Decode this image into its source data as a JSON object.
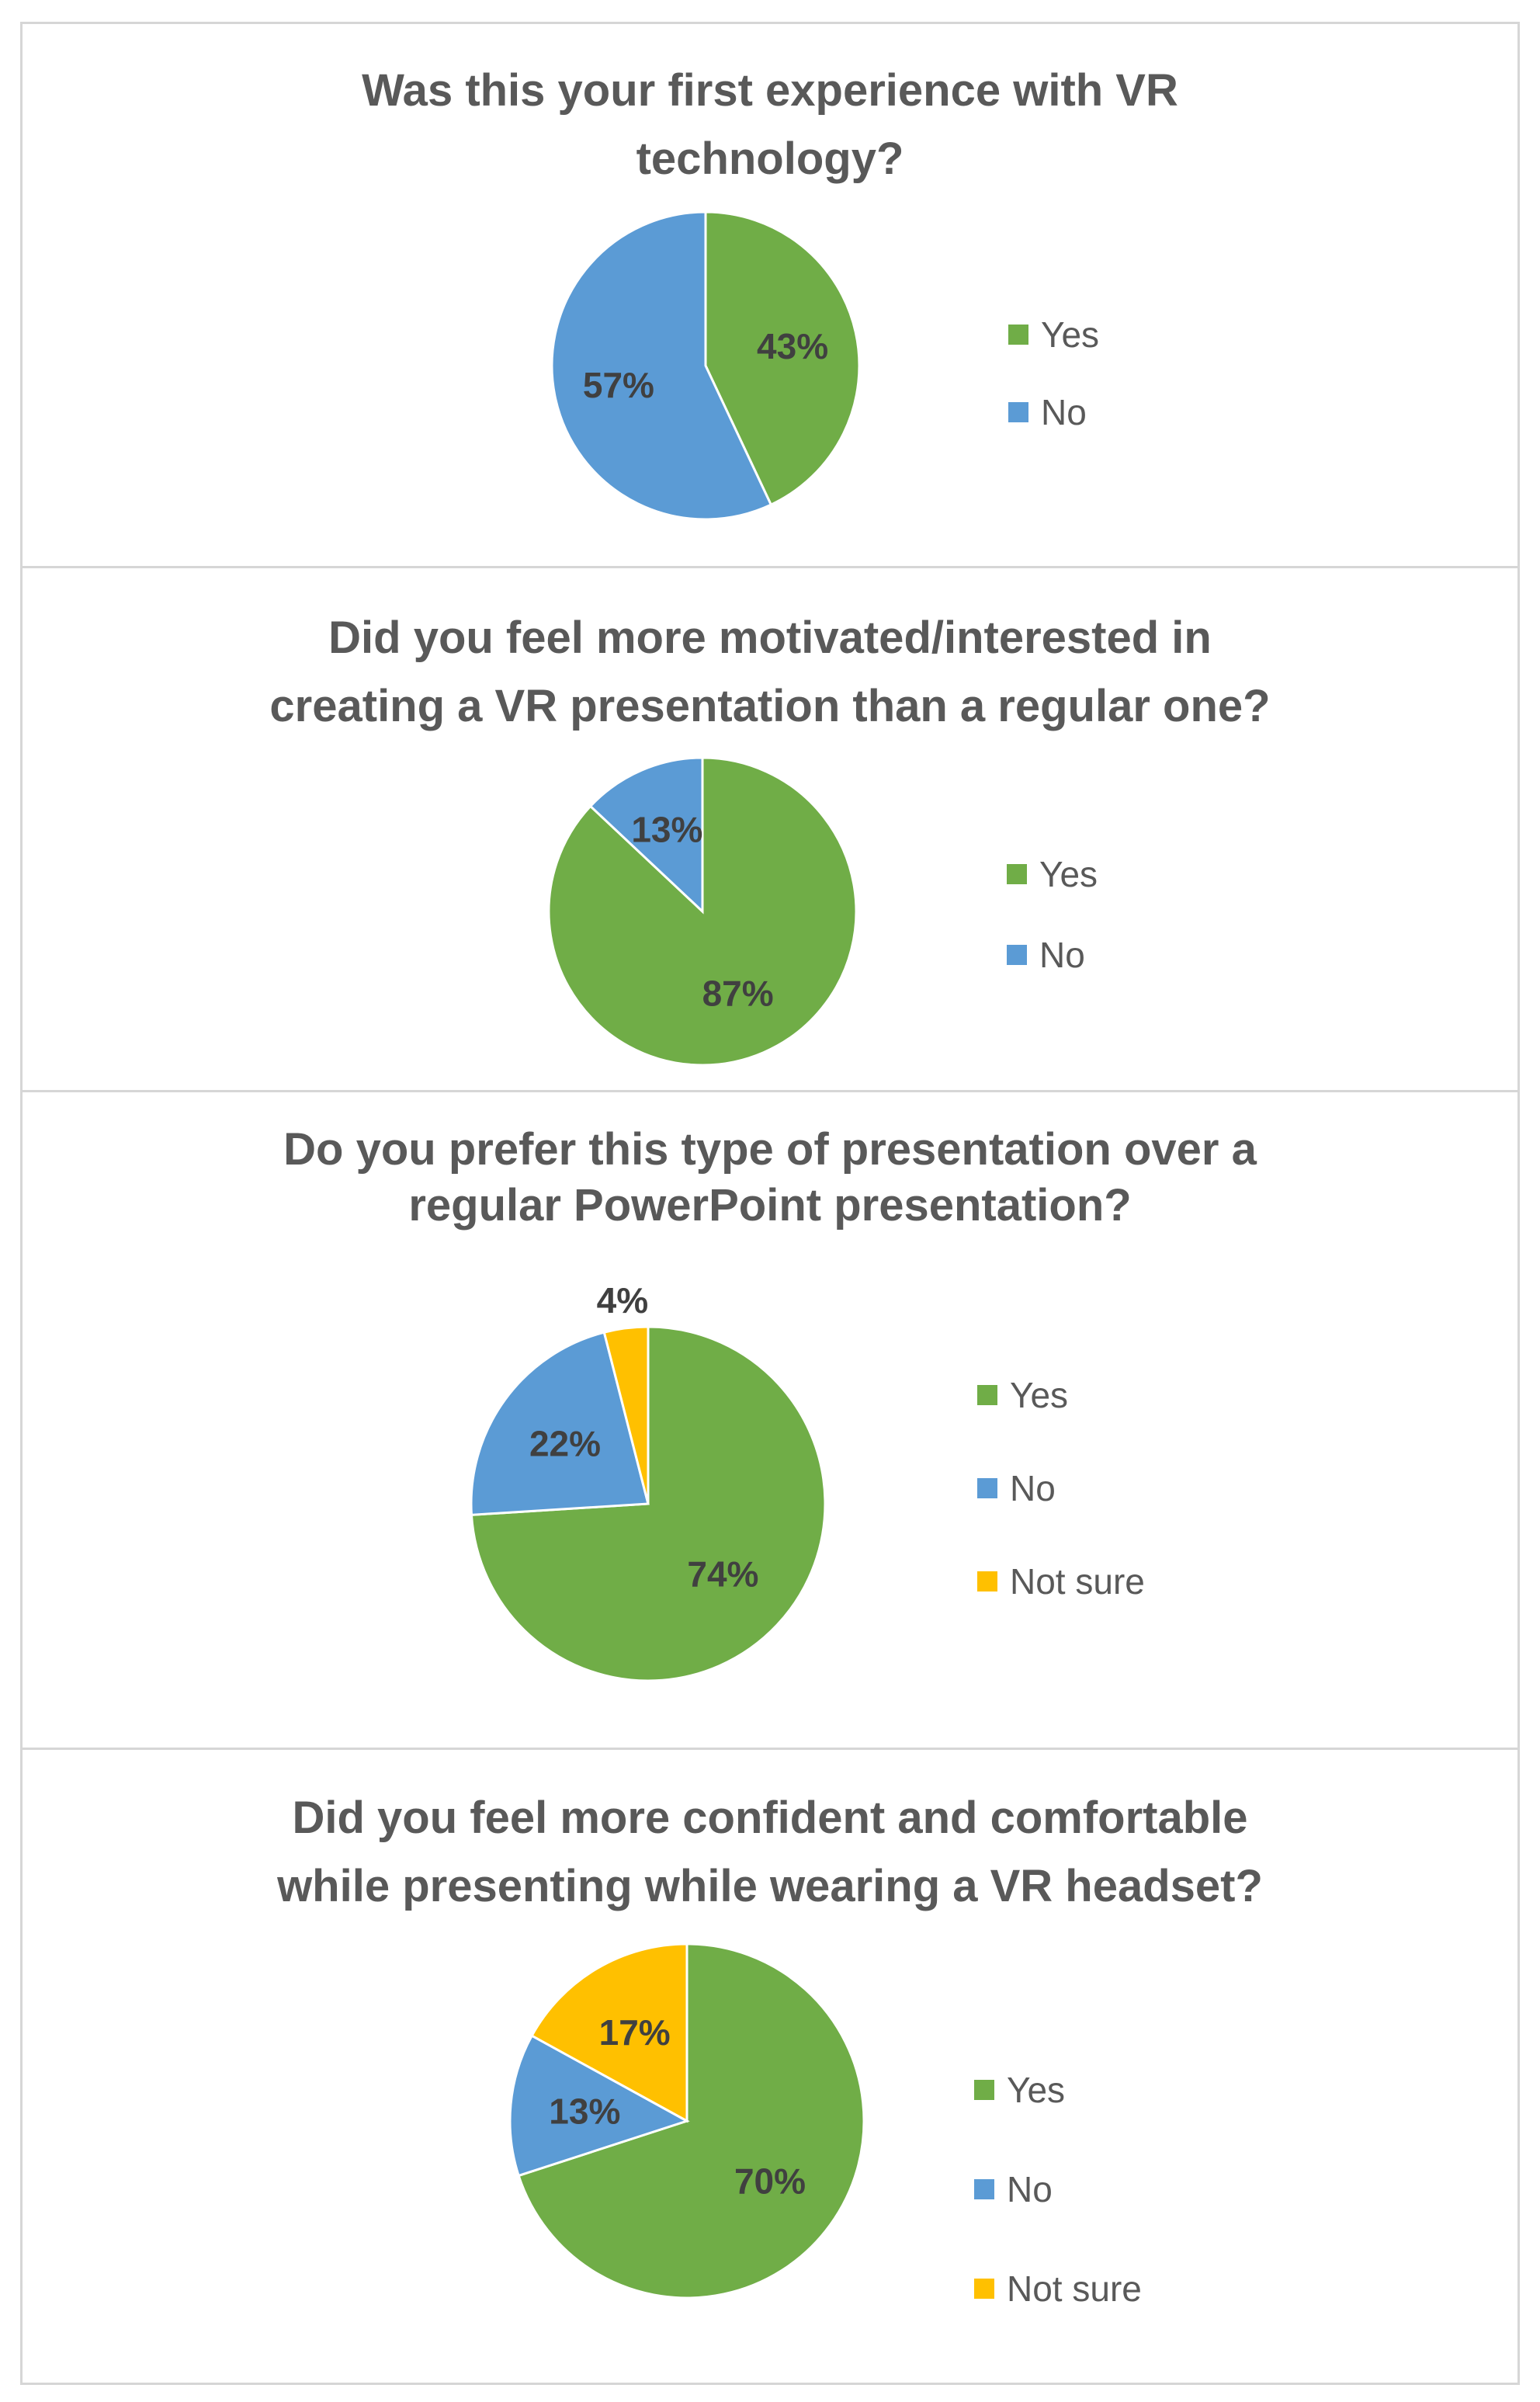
{
  "colors": {
    "yes": "#70ad47",
    "no": "#5b9bd5",
    "not_sure": "#ffc000"
  },
  "chart_data": [
    {
      "type": "pie",
      "title": "Was this your first experience with VR technology?",
      "title_lines": [
        "Was this your first experience with VR",
        "technology?"
      ],
      "categories": [
        "Yes",
        "No"
      ],
      "values": [
        43,
        57
      ],
      "value_labels": [
        "43%",
        "57%"
      ]
    },
    {
      "type": "pie",
      "title": "Did you feel more motivated/interested in creating a VR presentation than a regular one?",
      "title_lines": [
        "Did you feel more motivated/interested in",
        "creating a VR presentation than a regular one?"
      ],
      "categories": [
        "Yes",
        "No"
      ],
      "values": [
        87,
        13
      ],
      "value_labels": [
        "87%",
        "13%"
      ]
    },
    {
      "type": "pie",
      "title": "Do you prefer this type of presentation over a regular PowerPoint presentation?",
      "title_lines": [
        "Do you prefer this type of presentation over a",
        "regular PowerPoint presentation?"
      ],
      "categories": [
        "Yes",
        "No",
        "Not sure"
      ],
      "values": [
        74,
        22,
        4
      ],
      "value_labels": [
        "74%",
        "22%",
        "4%"
      ]
    },
    {
      "type": "pie",
      "title": "Did you feel more confident and comfortable while presenting while wearing a VR headset?",
      "title_lines": [
        "Did you feel more confident and comfortable",
        "while presenting while wearing a VR headset?"
      ],
      "categories": [
        "Yes",
        "No",
        "Not sure"
      ],
      "values": [
        70,
        13,
        17
      ],
      "value_labels": [
        "70%",
        "13%",
        "17%"
      ]
    }
  ]
}
